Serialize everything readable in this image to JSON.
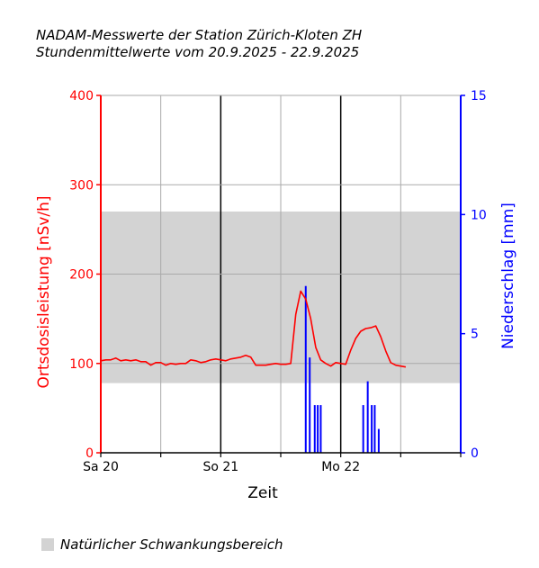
{
  "title": {
    "line1": "NADAM-Messwerte der Station Zürich-Kloten ZH",
    "line2": "Stundenmittelwerte vom 20.9.2025 - 22.9.2025"
  },
  "legend": {
    "band_label": "Natürlicher Schwankungsbereich"
  },
  "chart_data": {
    "type": "line",
    "xlabel": "Zeit",
    "ylabel": "Ortsdosisleistung [nSv/h]",
    "y2label": "Niederschlag [mm]",
    "x_unit": "hours since Sa 20 00:00",
    "xlim": [
      0,
      72
    ],
    "ylim": [
      0,
      400
    ],
    "y2lim": [
      0,
      15
    ],
    "x_tick_labels": [
      {
        "label": "Sa 20",
        "x": 0
      },
      {
        "label": "So 21",
        "x": 24
      },
      {
        "label": "Mo 22",
        "x": 48
      }
    ],
    "y_ticks": [
      0,
      100,
      200,
      300,
      400
    ],
    "y2_ticks": [
      0,
      5,
      10,
      15
    ],
    "grid": true,
    "band": {
      "y_min": 78,
      "y_max": 270
    },
    "colors": {
      "dose": "#ff0000",
      "rain": "#0000ff",
      "band": "#d3d3d3",
      "grid": "#aaaaaa",
      "day_line": "#000000"
    },
    "series": [
      {
        "name": "Ortsdosisleistung [nSv/h]",
        "type": "line",
        "axis": "left",
        "x": [
          0,
          1,
          2,
          3,
          4,
          5,
          6,
          7,
          8,
          9,
          10,
          11,
          12,
          13,
          14,
          15,
          16,
          17,
          18,
          19,
          20,
          21,
          22,
          23,
          24,
          25,
          26,
          27,
          28,
          29,
          30,
          31,
          32,
          33,
          34,
          35,
          36,
          37,
          38,
          39,
          40,
          41,
          42,
          43,
          44,
          45,
          46,
          47,
          48,
          49,
          50,
          51,
          52,
          53,
          54,
          55,
          56,
          57,
          58,
          59,
          60,
          61
        ],
        "values": [
          103,
          104,
          104,
          106,
          103,
          104,
          103,
          104,
          102,
          102,
          98,
          101,
          101,
          98,
          100,
          99,
          100,
          100,
          104,
          103,
          101,
          102,
          104,
          105,
          104,
          103,
          105,
          106,
          107,
          109,
          107,
          98,
          98,
          98,
          99,
          100,
          99,
          99,
          100,
          155,
          181,
          172,
          150,
          118,
          104,
          100,
          97,
          101,
          100,
          99,
          115,
          128,
          136,
          139,
          140,
          142,
          130,
          114,
          101,
          98,
          97,
          96
        ]
      },
      {
        "name": "Niederschlag [mm]",
        "type": "bar",
        "axis": "right",
        "x": [
          41.0,
          41.8,
          42.8,
          43.4,
          44.0,
          52.5,
          53.4,
          54.2,
          54.8,
          55.6
        ],
        "values": [
          7.0,
          4.0,
          2.0,
          2.0,
          2.0,
          2.0,
          3.0,
          2.0,
          2.0,
          1.0
        ]
      }
    ]
  }
}
